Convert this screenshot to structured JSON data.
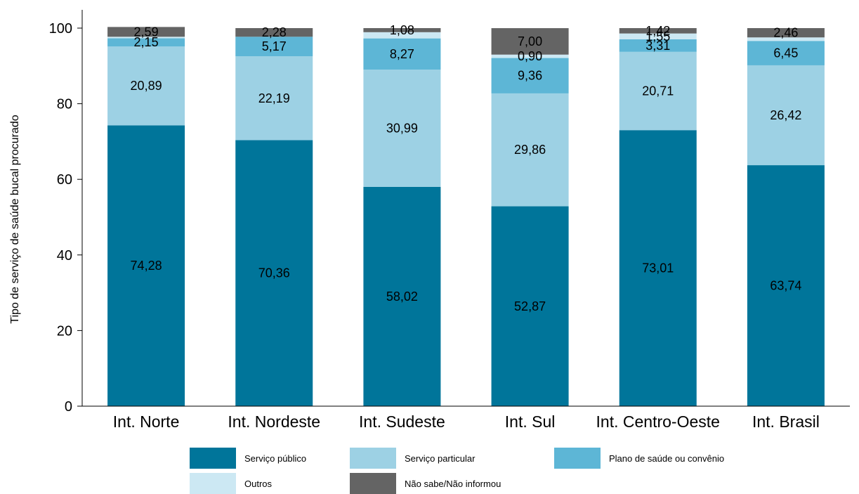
{
  "chart_data": {
    "type": "bar",
    "stacked": true,
    "title": "",
    "xlabel": "",
    "ylabel": "Tipo de serviço de saúde bucal procurado",
    "ylim": [
      0,
      100
    ],
    "yticks": [
      0,
      20,
      40,
      60,
      80,
      100
    ],
    "categories": [
      "Int. Norte",
      "Int. Nordeste",
      "Int. Sudeste",
      "Int. Sul",
      "Int. Centro-Oeste",
      "Int. Brasil"
    ],
    "series": [
      {
        "name": "Serviço público",
        "color": "#00759a",
        "values": [
          74.28,
          70.36,
          58.02,
          52.87,
          73.01,
          63.74
        ],
        "labels": [
          "74,28",
          "70,36",
          "58,02",
          "52,87",
          "73,01",
          "63,74"
        ]
      },
      {
        "name": "Serviço particular",
        "color": "#9dd1e4",
        "values": [
          20.89,
          22.19,
          30.99,
          29.86,
          20.71,
          26.42
        ],
        "labels": [
          "20,89",
          "22,19",
          "30,99",
          "29,86",
          "20,71",
          "26,42"
        ]
      },
      {
        "name": "Plano de saúde ou convênio",
        "color": "#5db6d6",
        "values": [
          2.15,
          5.17,
          8.27,
          9.36,
          3.31,
          6.45
        ],
        "labels": [
          "2,15",
          "5,17",
          "8,27",
          "9,36",
          "3,31",
          "6,45"
        ]
      },
      {
        "name": "Outros",
        "color": "#cce8f3",
        "values": [
          0.39,
          0.0,
          1.64,
          0.9,
          1.55,
          0.93
        ],
        "labels": [
          "",
          "",
          "",
          "0,90",
          "1,55",
          ""
        ]
      },
      {
        "name": "Não sabe/Não informou",
        "color": "#646464",
        "values": [
          2.59,
          2.28,
          1.08,
          7.0,
          1.42,
          2.46
        ],
        "labels": [
          "2,59",
          "2,28",
          "1,08",
          "7,00",
          "1,42",
          "2,46"
        ]
      }
    ],
    "legend": {
      "position": "bottom",
      "columns": 3
    },
    "grid": false
  }
}
